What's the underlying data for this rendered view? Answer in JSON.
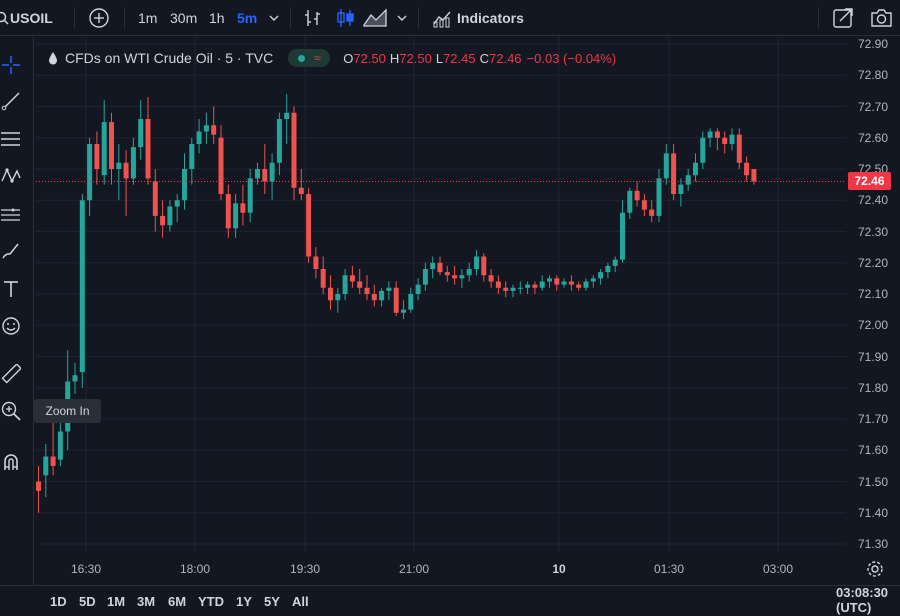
{
  "toolbar": {
    "symbol": "USOIL",
    "intervals": [
      "1m",
      "30m",
      "1h",
      "5m"
    ],
    "active_interval": "5m",
    "indicators_label": "Indicators"
  },
  "legend": {
    "title": "CFDs on WTI Crude Oil · 5 · TVC",
    "o_label": "O",
    "o_value": "72.50",
    "h_label": "H",
    "h_value": "72.50",
    "l_label": "L",
    "l_value": "72.45",
    "c_label": "C",
    "c_value": "72.46",
    "change": "−0.03 (−0.04%)"
  },
  "tooltip": {
    "text": "Zoom In"
  },
  "left_tools": [
    "crosshair-icon",
    "trend-line-icon",
    "fib-icon",
    "pattern-icon",
    "prediction-icon",
    "brush-icon",
    "text-icon",
    "emoji-icon",
    "ruler-icon",
    "zoom-in-icon",
    "magnet-icon"
  ],
  "price_axis": {
    "labels": [
      "72.90",
      "72.80",
      "72.70",
      "72.60",
      "72.50",
      "72.40",
      "72.30",
      "72.20",
      "72.10",
      "72.00",
      "71.90",
      "71.80",
      "71.70",
      "71.60",
      "71.50",
      "71.40",
      "71.30"
    ],
    "last_price": "72.46"
  },
  "time_axis": {
    "labels": [
      {
        "text": "16:30",
        "bold": false
      },
      {
        "text": "18:00",
        "bold": false
      },
      {
        "text": "19:30",
        "bold": false
      },
      {
        "text": "21:00",
        "bold": false
      },
      {
        "text": "10",
        "bold": true
      },
      {
        "text": "01:30",
        "bold": false
      },
      {
        "text": "03:00",
        "bold": false
      }
    ]
  },
  "bottom": {
    "ranges": [
      "1D",
      "5D",
      "1M",
      "3M",
      "6M",
      "YTD",
      "1Y",
      "5Y",
      "All"
    ],
    "clock": "03:08:30 (UTC)"
  },
  "colors": {
    "background": "#131722",
    "grid": "#1f2330",
    "up": "#26a69a",
    "down": "#ef5350",
    "accent": "#2962ff",
    "last_price": "#f23645"
  },
  "chart_data": {
    "type": "candlestick",
    "ylim": [
      71.25,
      72.92
    ],
    "candles": [
      [
        71.5,
        71.55,
        71.4,
        71.47
      ],
      [
        71.52,
        71.62,
        71.45,
        71.58
      ],
      [
        71.58,
        71.7,
        71.52,
        71.55
      ],
      [
        71.57,
        71.7,
        71.55,
        71.66
      ],
      [
        71.66,
        71.92,
        71.6,
        71.82
      ],
      [
        71.82,
        71.88,
        71.78,
        71.84
      ],
      [
        71.85,
        72.42,
        71.8,
        72.4
      ],
      [
        72.4,
        72.6,
        72.35,
        72.58
      ],
      [
        72.58,
        72.62,
        72.45,
        72.5
      ],
      [
        72.48,
        72.72,
        72.45,
        72.65
      ],
      [
        72.65,
        72.68,
        72.45,
        72.5
      ],
      [
        72.5,
        72.58,
        72.4,
        72.52
      ],
      [
        72.52,
        72.56,
        72.35,
        72.47
      ],
      [
        72.47,
        72.6,
        72.45,
        72.57
      ],
      [
        72.57,
        72.72,
        72.53,
        72.66
      ],
      [
        72.66,
        72.73,
        72.45,
        72.47
      ],
      [
        72.46,
        72.5,
        72.3,
        72.35
      ],
      [
        72.35,
        72.4,
        72.28,
        72.32
      ],
      [
        72.32,
        72.4,
        72.3,
        72.38
      ],
      [
        72.38,
        72.42,
        72.33,
        72.4
      ],
      [
        72.4,
        72.55,
        72.37,
        72.5
      ],
      [
        72.5,
        72.6,
        72.45,
        72.58
      ],
      [
        72.58,
        72.66,
        72.55,
        72.62
      ],
      [
        72.62,
        72.68,
        72.58,
        72.64
      ],
      [
        72.64,
        72.7,
        72.58,
        72.61
      ],
      [
        72.6,
        72.64,
        72.4,
        72.42
      ],
      [
        72.42,
        72.45,
        72.28,
        72.31
      ],
      [
        72.31,
        72.42,
        72.28,
        72.39
      ],
      [
        72.39,
        72.45,
        72.32,
        72.36
      ],
      [
        72.36,
        72.5,
        72.33,
        72.47
      ],
      [
        72.47,
        72.52,
        72.45,
        72.5
      ],
      [
        72.5,
        72.58,
        72.42,
        72.46
      ],
      [
        72.46,
        72.55,
        72.4,
        72.52
      ],
      [
        72.52,
        72.68,
        72.48,
        72.66
      ],
      [
        72.66,
        72.74,
        72.58,
        72.68
      ],
      [
        72.68,
        72.7,
        72.4,
        72.44
      ],
      [
        72.44,
        72.5,
        72.4,
        72.42
      ],
      [
        72.42,
        72.44,
        72.2,
        72.22
      ],
      [
        72.22,
        72.25,
        72.15,
        72.18
      ],
      [
        72.18,
        72.22,
        72.1,
        72.12
      ],
      [
        72.12,
        72.16,
        72.05,
        72.08
      ],
      [
        72.08,
        72.12,
        72.04,
        72.1
      ],
      [
        72.1,
        72.18,
        72.08,
        72.16
      ],
      [
        72.16,
        72.19,
        72.12,
        72.14
      ],
      [
        72.14,
        72.18,
        72.1,
        72.12
      ],
      [
        72.12,
        72.16,
        72.08,
        72.1
      ],
      [
        72.1,
        72.13,
        72.06,
        72.08
      ],
      [
        72.08,
        72.12,
        72.06,
        72.11
      ],
      [
        72.11,
        72.14,
        72.08,
        72.12
      ],
      [
        72.12,
        72.14,
        72.03,
        72.04
      ],
      [
        72.04,
        72.08,
        72.02,
        72.05
      ],
      [
        72.05,
        72.12,
        72.04,
        72.1
      ],
      [
        72.1,
        72.15,
        72.08,
        72.13
      ],
      [
        72.13,
        72.2,
        72.11,
        72.18
      ],
      [
        72.18,
        72.22,
        72.15,
        72.2
      ],
      [
        72.2,
        72.22,
        72.16,
        72.17
      ],
      [
        72.17,
        72.19,
        72.14,
        72.16
      ],
      [
        72.16,
        72.19,
        72.13,
        72.15
      ],
      [
        72.15,
        72.18,
        72.12,
        72.16
      ],
      [
        72.16,
        72.2,
        72.14,
        72.18
      ],
      [
        72.18,
        72.24,
        72.16,
        72.22
      ],
      [
        72.22,
        72.23,
        72.14,
        72.16
      ],
      [
        72.16,
        72.18,
        72.12,
        72.14
      ],
      [
        72.14,
        72.16,
        72.1,
        72.12
      ],
      [
        72.12,
        72.14,
        72.09,
        72.11
      ],
      [
        72.11,
        72.13,
        72.09,
        72.12
      ],
      [
        72.12,
        72.14,
        72.1,
        72.12
      ],
      [
        72.12,
        72.14,
        72.1,
        72.13
      ],
      [
        72.13,
        72.14,
        72.1,
        72.12
      ],
      [
        72.12,
        72.16,
        72.11,
        72.14
      ],
      [
        72.14,
        72.16,
        72.12,
        72.15
      ],
      [
        72.15,
        72.16,
        72.11,
        72.13
      ],
      [
        72.13,
        72.15,
        72.12,
        72.14
      ],
      [
        72.14,
        72.16,
        72.11,
        72.13
      ],
      [
        72.13,
        72.14,
        72.11,
        72.12
      ],
      [
        72.12,
        72.15,
        72.11,
        72.14
      ],
      [
        72.14,
        72.16,
        72.12,
        72.15
      ],
      [
        72.15,
        72.18,
        72.13,
        72.17
      ],
      [
        72.17,
        72.2,
        72.15,
        72.19
      ],
      [
        72.19,
        72.22,
        72.17,
        72.21
      ],
      [
        72.21,
        72.4,
        72.2,
        72.36
      ],
      [
        72.36,
        72.44,
        72.34,
        72.43
      ],
      [
        72.43,
        72.46,
        72.38,
        72.4
      ],
      [
        72.4,
        72.42,
        72.35,
        72.37
      ],
      [
        72.37,
        72.4,
        72.33,
        72.35
      ],
      [
        72.35,
        72.5,
        72.33,
        72.47
      ],
      [
        72.47,
        72.58,
        72.45,
        72.55
      ],
      [
        72.55,
        72.58,
        72.4,
        72.42
      ],
      [
        72.42,
        72.47,
        72.38,
        72.45
      ],
      [
        72.45,
        72.5,
        72.43,
        72.48
      ],
      [
        72.48,
        72.55,
        72.46,
        72.52
      ],
      [
        72.52,
        72.62,
        72.5,
        72.6
      ],
      [
        72.6,
        72.63,
        72.57,
        72.62
      ],
      [
        72.62,
        72.63,
        72.56,
        72.6
      ],
      [
        72.6,
        72.62,
        72.55,
        72.58
      ],
      [
        72.58,
        72.63,
        72.56,
        72.61
      ],
      [
        72.61,
        72.63,
        72.5,
        72.52
      ],
      [
        72.52,
        72.54,
        72.46,
        72.48
      ],
      [
        72.5,
        72.5,
        72.45,
        72.46
      ]
    ]
  }
}
